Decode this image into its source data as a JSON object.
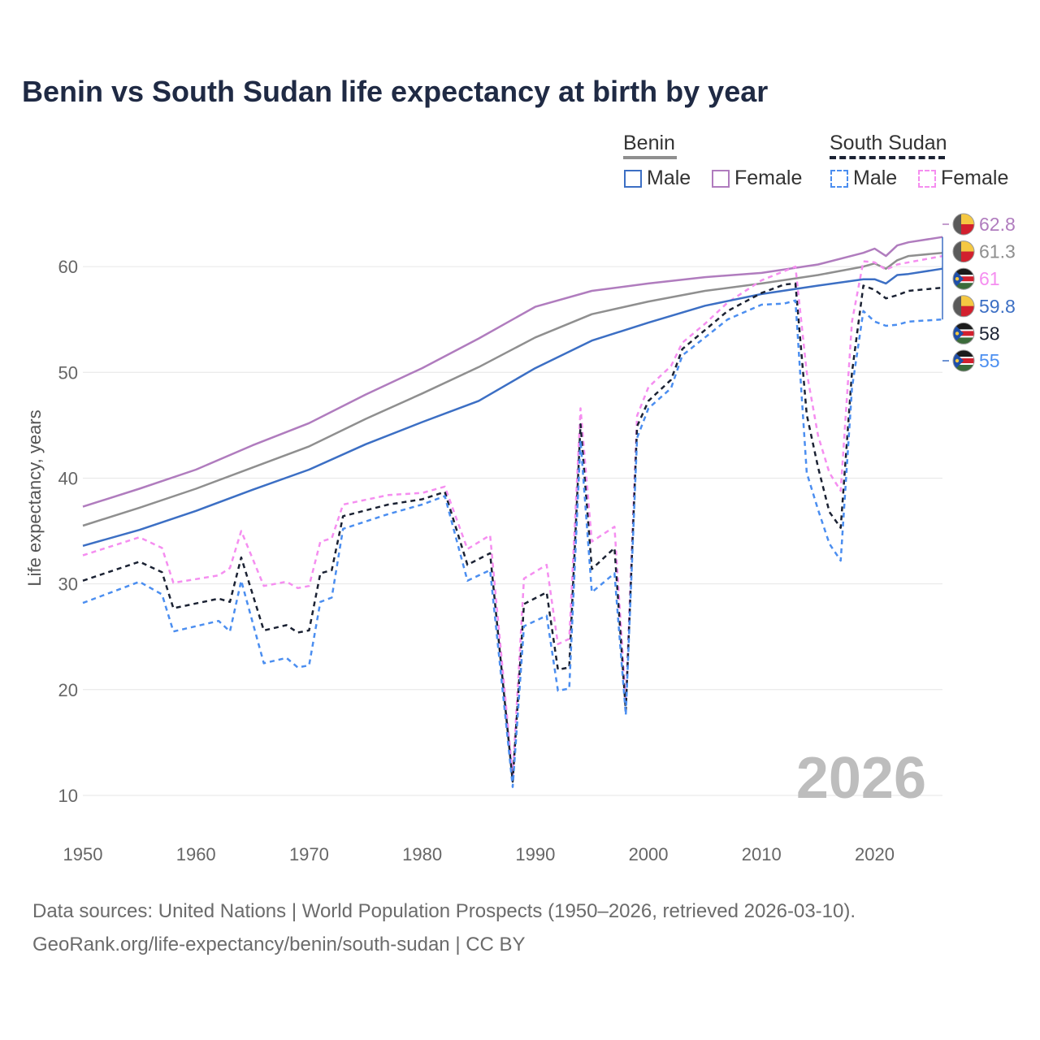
{
  "title": "Benin vs South Sudan life expectancy at birth by year",
  "legend": {
    "groups": [
      {
        "name": "Benin",
        "line_style": "solid",
        "color": "#8f8f8f",
        "items": [
          {
            "label": "Male",
            "color": "#3c6fc4"
          },
          {
            "label": "Female",
            "color": "#b07cbe"
          }
        ]
      },
      {
        "name": "South Sudan",
        "line_style": "dashed",
        "color": "#1b2233",
        "items": [
          {
            "label": "Male",
            "color": "#4b8ef0"
          },
          {
            "label": "Female",
            "color": "#f58ef0"
          }
        ]
      }
    ]
  },
  "year_watermark": "2026",
  "footer": {
    "line1": "Data sources: United Nations | World Population Prospects (1950–2026, retrieved 2026-03-10).",
    "line2": "GeoRank.org/life-expectancy/benin/south-sudan | CC BY"
  },
  "chart_data": {
    "type": "line",
    "title": "Benin vs South Sudan life expectancy at birth by year",
    "xlabel": "",
    "ylabel": "Life expectancy, years",
    "xlim": [
      1950,
      2026
    ],
    "ylim": [
      8,
      66
    ],
    "xticks": [
      1950,
      1960,
      1970,
      1980,
      1990,
      2000,
      2010,
      2020
    ],
    "yticks": [
      10,
      20,
      30,
      40,
      50,
      60
    ],
    "grid": true,
    "series": [
      {
        "name": "Benin Female",
        "country": "Benin",
        "sex": "Female",
        "color": "#b07cbe",
        "dash": "none",
        "flag": "benin",
        "end_label": "62.8",
        "points": [
          [
            1950,
            37.3
          ],
          [
            1955,
            39.0
          ],
          [
            1960,
            40.8
          ],
          [
            1965,
            43.1
          ],
          [
            1970,
            45.2
          ],
          [
            1975,
            47.9
          ],
          [
            1980,
            50.4
          ],
          [
            1985,
            53.2
          ],
          [
            1990,
            56.2
          ],
          [
            1995,
            57.7
          ],
          [
            2000,
            58.4
          ],
          [
            2005,
            59.0
          ],
          [
            2010,
            59.4
          ],
          [
            2015,
            60.2
          ],
          [
            2019,
            61.3
          ],
          [
            2020,
            61.7
          ],
          [
            2021,
            61.0
          ],
          [
            2022,
            62.0
          ],
          [
            2023,
            62.3
          ],
          [
            2026,
            62.8
          ]
        ]
      },
      {
        "name": "Benin (both sexes)",
        "country": "Benin",
        "sex": "Both",
        "color": "#8f8f8f",
        "dash": "none",
        "flag": "benin",
        "end_label": "61.3",
        "points": [
          [
            1950,
            35.5
          ],
          [
            1955,
            37.2
          ],
          [
            1960,
            39.0
          ],
          [
            1965,
            41.0
          ],
          [
            1970,
            43.0
          ],
          [
            1975,
            45.6
          ],
          [
            1980,
            48.0
          ],
          [
            1985,
            50.5
          ],
          [
            1990,
            53.3
          ],
          [
            1995,
            55.5
          ],
          [
            2000,
            56.7
          ],
          [
            2005,
            57.7
          ],
          [
            2010,
            58.4
          ],
          [
            2015,
            59.2
          ],
          [
            2019,
            60.0
          ],
          [
            2020,
            60.3
          ],
          [
            2021,
            59.8
          ],
          [
            2022,
            60.6
          ],
          [
            2023,
            61.0
          ],
          [
            2026,
            61.3
          ]
        ]
      },
      {
        "name": "South Sudan Female",
        "country": "South Sudan",
        "sex": "Female",
        "color": "#f58ef0",
        "dash": "6,5",
        "flag": "south-sudan",
        "end_label": "61",
        "points": [
          [
            1950,
            32.7
          ],
          [
            1955,
            34.4
          ],
          [
            1957,
            33.4
          ],
          [
            1958,
            30.1
          ],
          [
            1962,
            30.8
          ],
          [
            1963,
            31.5
          ],
          [
            1964,
            35.0
          ],
          [
            1966,
            29.8
          ],
          [
            1968,
            30.2
          ],
          [
            1969,
            29.6
          ],
          [
            1970,
            29.8
          ],
          [
            1971,
            34.0
          ],
          [
            1972,
            34.3
          ],
          [
            1973,
            37.5
          ],
          [
            1977,
            38.4
          ],
          [
            1980,
            38.6
          ],
          [
            1982,
            39.2
          ],
          [
            1984,
            33.3
          ],
          [
            1986,
            34.6
          ],
          [
            1988,
            11.8
          ],
          [
            1989,
            30.5
          ],
          [
            1991,
            31.8
          ],
          [
            1992,
            24.3
          ],
          [
            1993,
            24.8
          ],
          [
            1994,
            46.6
          ],
          [
            1995,
            34.0
          ],
          [
            1997,
            35.4
          ],
          [
            1998,
            18.8
          ],
          [
            1999,
            45.9
          ],
          [
            2000,
            48.6
          ],
          [
            2002,
            50.6
          ],
          [
            2003,
            52.8
          ],
          [
            2005,
            54.6
          ],
          [
            2007,
            56.6
          ],
          [
            2010,
            58.7
          ],
          [
            2013,
            60.0
          ],
          [
            2014,
            50.0
          ],
          [
            2015,
            44.0
          ],
          [
            2016,
            40.5
          ],
          [
            2017,
            38.8
          ],
          [
            2018,
            54.8
          ],
          [
            2019,
            60.5
          ],
          [
            2020,
            60.4
          ],
          [
            2021,
            59.7
          ],
          [
            2022,
            60.2
          ],
          [
            2026,
            61.0
          ]
        ]
      },
      {
        "name": "Benin Male",
        "country": "Benin",
        "sex": "Male",
        "color": "#3c6fc4",
        "dash": "none",
        "flag": "benin",
        "end_label": "59.8",
        "points": [
          [
            1950,
            33.6
          ],
          [
            1955,
            35.1
          ],
          [
            1960,
            36.9
          ],
          [
            1965,
            38.9
          ],
          [
            1970,
            40.8
          ],
          [
            1975,
            43.2
          ],
          [
            1980,
            45.3
          ],
          [
            1985,
            47.3
          ],
          [
            1990,
            50.4
          ],
          [
            1995,
            53.0
          ],
          [
            2000,
            54.7
          ],
          [
            2005,
            56.3
          ],
          [
            2010,
            57.4
          ],
          [
            2015,
            58.2
          ],
          [
            2019,
            58.8
          ],
          [
            2020,
            58.8
          ],
          [
            2021,
            58.4
          ],
          [
            2022,
            59.2
          ],
          [
            2023,
            59.3
          ],
          [
            2026,
            59.8
          ]
        ]
      },
      {
        "name": "South Sudan (both sexes)",
        "country": "South Sudan",
        "sex": "Both",
        "color": "#1b2233",
        "dash": "6,5",
        "flag": "south-sudan",
        "end_label": "58",
        "points": [
          [
            1950,
            30.3
          ],
          [
            1955,
            32.1
          ],
          [
            1957,
            31.1
          ],
          [
            1958,
            27.7
          ],
          [
            1962,
            28.6
          ],
          [
            1963,
            28.3
          ],
          [
            1964,
            32.5
          ],
          [
            1966,
            25.6
          ],
          [
            1968,
            26.1
          ],
          [
            1969,
            25.4
          ],
          [
            1970,
            25.6
          ],
          [
            1971,
            31.0
          ],
          [
            1972,
            31.3
          ],
          [
            1973,
            36.4
          ],
          [
            1977,
            37.5
          ],
          [
            1980,
            38.0
          ],
          [
            1982,
            38.7
          ],
          [
            1984,
            31.8
          ],
          [
            1986,
            32.9
          ],
          [
            1988,
            11.3
          ],
          [
            1989,
            28.1
          ],
          [
            1991,
            29.2
          ],
          [
            1992,
            21.9
          ],
          [
            1993,
            22.1
          ],
          [
            1994,
            45.1
          ],
          [
            1995,
            31.4
          ],
          [
            1997,
            33.4
          ],
          [
            1998,
            18.0
          ],
          [
            1999,
            44.9
          ],
          [
            2000,
            47.3
          ],
          [
            2002,
            49.3
          ],
          [
            2003,
            52.2
          ],
          [
            2005,
            54.0
          ],
          [
            2007,
            55.8
          ],
          [
            2010,
            57.5
          ],
          [
            2012,
            58.3
          ],
          [
            2013,
            58.4
          ],
          [
            2014,
            46.0
          ],
          [
            2015,
            41.0
          ],
          [
            2016,
            36.8
          ],
          [
            2017,
            35.3
          ],
          [
            2018,
            50.0
          ],
          [
            2019,
            58.2
          ],
          [
            2020,
            57.8
          ],
          [
            2021,
            57.0
          ],
          [
            2022,
            57.3
          ],
          [
            2023,
            57.7
          ],
          [
            2026,
            58.0
          ]
        ]
      },
      {
        "name": "South Sudan Male",
        "country": "South Sudan",
        "sex": "Male",
        "color": "#4b8ef0",
        "dash": "6,5",
        "flag": "south-sudan",
        "end_label": "55",
        "points": [
          [
            1950,
            28.2
          ],
          [
            1955,
            30.2
          ],
          [
            1957,
            29.0
          ],
          [
            1958,
            25.5
          ],
          [
            1962,
            26.5
          ],
          [
            1963,
            25.5
          ],
          [
            1964,
            30.3
          ],
          [
            1966,
            22.5
          ],
          [
            1968,
            23.0
          ],
          [
            1969,
            22.1
          ],
          [
            1970,
            22.3
          ],
          [
            1971,
            28.3
          ],
          [
            1972,
            28.7
          ],
          [
            1973,
            35.2
          ],
          [
            1977,
            36.6
          ],
          [
            1980,
            37.5
          ],
          [
            1982,
            38.3
          ],
          [
            1984,
            30.3
          ],
          [
            1986,
            31.3
          ],
          [
            1988,
            10.8
          ],
          [
            1989,
            26.0
          ],
          [
            1991,
            27.0
          ],
          [
            1992,
            19.9
          ],
          [
            1993,
            20.1
          ],
          [
            1994,
            43.6
          ],
          [
            1995,
            29.2
          ],
          [
            1997,
            31.0
          ],
          [
            1998,
            17.6
          ],
          [
            1999,
            43.8
          ],
          [
            2000,
            46.6
          ],
          [
            2002,
            48.5
          ],
          [
            2003,
            51.6
          ],
          [
            2005,
            53.3
          ],
          [
            2007,
            55.0
          ],
          [
            2010,
            56.4
          ],
          [
            2012,
            56.5
          ],
          [
            2013,
            56.8
          ],
          [
            2014,
            40.5
          ],
          [
            2015,
            37.0
          ],
          [
            2016,
            33.8
          ],
          [
            2017,
            32.2
          ],
          [
            2018,
            48.5
          ],
          [
            2019,
            55.8
          ],
          [
            2020,
            54.8
          ],
          [
            2021,
            54.4
          ],
          [
            2022,
            54.5
          ],
          [
            2023,
            54.8
          ],
          [
            2026,
            55.0
          ]
        ]
      }
    ]
  }
}
